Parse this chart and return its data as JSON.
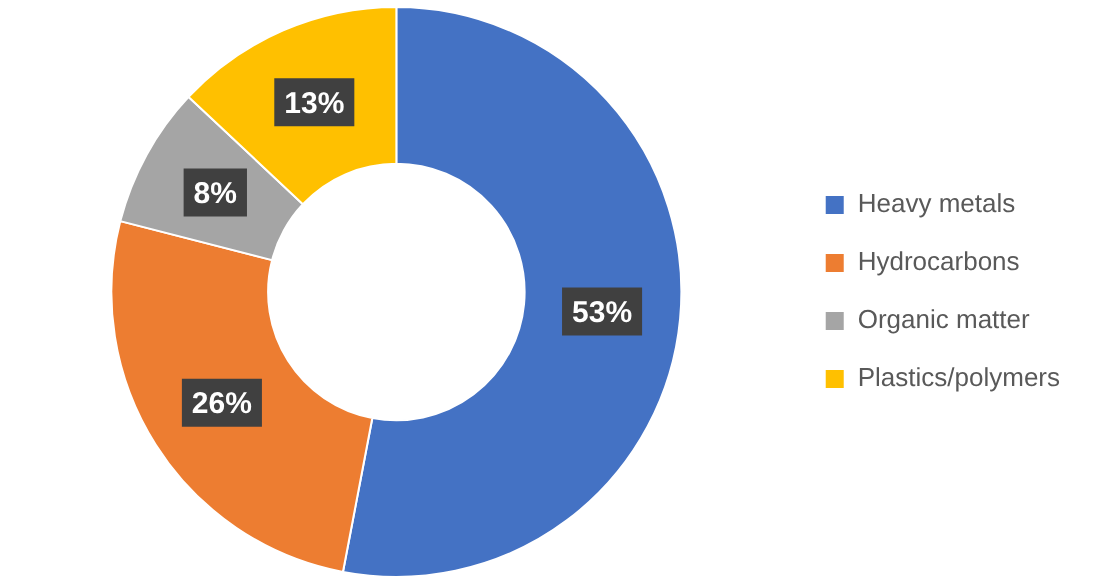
{
  "chart_data": {
    "type": "donut",
    "categories": [
      "Heavy metals",
      "Hydrocarbons",
      "Organic matter",
      "Plastics/polymers"
    ],
    "values": [
      53,
      26,
      8,
      13
    ],
    "colors": [
      "#4472c4",
      "#ed7d31",
      "#a5a5a5",
      "#ffc000"
    ],
    "value_labels": [
      "53%",
      "26%",
      "8%",
      "13%"
    ],
    "legend": "right"
  }
}
